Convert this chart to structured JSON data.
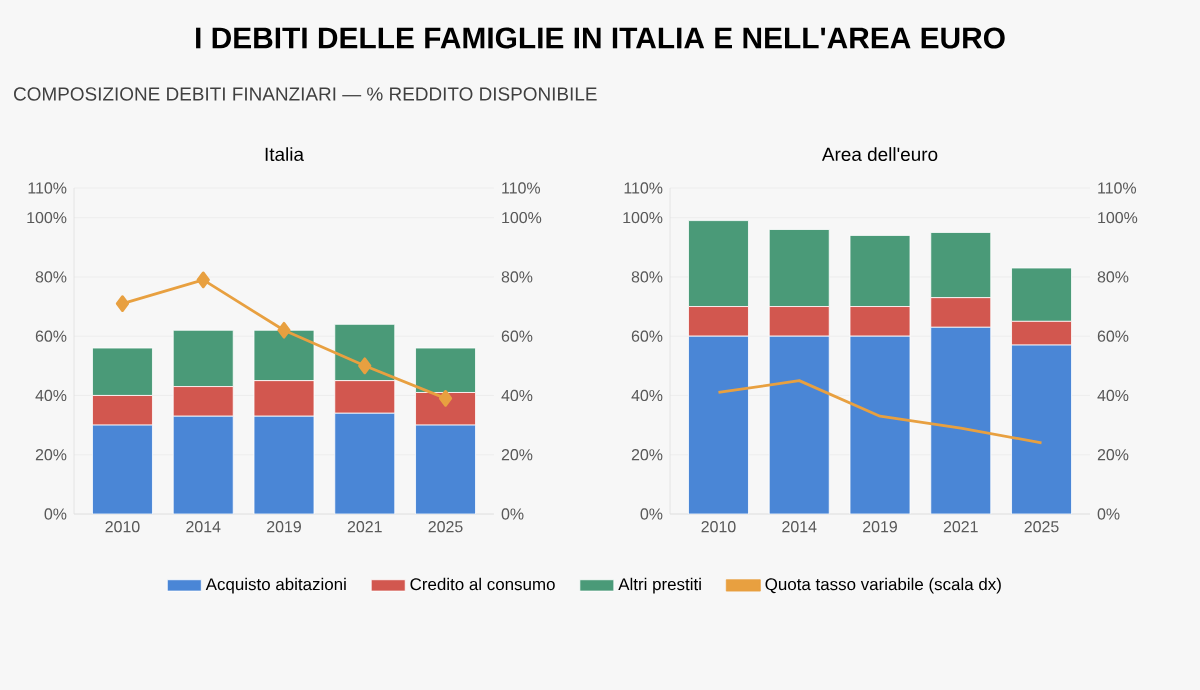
{
  "chart_data": [
    {
      "type": "other",
      "title": "I DEBITI DELLE FAMIGLIE IN ITALIA E NELL'AREA EURO",
      "subtitle": "COMPOSIZIONE DEBITI FINANZIARI — % REDDITO DISPONIBILE"
    },
    {
      "type": "bar",
      "stacked": true,
      "title": "Italia",
      "categories": [
        "2010",
        "2014",
        "2019",
        "2021",
        "2025"
      ],
      "series": [
        {
          "name": "Acquisto abitazioni",
          "color": "#4a86d6",
          "values": [
            30,
            33,
            33,
            34,
            30
          ]
        },
        {
          "name": "Credito al consumo",
          "color": "#d2574f",
          "values": [
            10,
            10,
            12,
            11,
            11
          ]
        },
        {
          "name": "Altri prestiti",
          "color": "#4a9a78",
          "values": [
            16,
            19,
            17,
            19,
            15
          ]
        },
        {
          "name": "Quota tasso variabile (scala dx)",
          "type": "line",
          "axis": "y2",
          "marker": "diamond",
          "color": "#e8a040",
          "values": [
            71,
            79,
            62,
            50,
            39
          ]
        }
      ],
      "ylim": [
        0,
        110
      ],
      "yticks": [
        {
          "value": 0,
          "label": "0%"
        },
        {
          "value": 20,
          "label": "20%"
        },
        {
          "value": 40,
          "label": "40%"
        },
        {
          "value": 60,
          "label": "60%"
        },
        {
          "value": 80,
          "label": "80%"
        },
        {
          "value": 100,
          "label": "100%"
        },
        {
          "value": 110,
          "label": "110%"
        }
      ],
      "y2lim": [
        0,
        110
      ],
      "y2ticks": [
        {
          "value": 0,
          "label": "0%"
        },
        {
          "value": 20,
          "label": "20%"
        },
        {
          "value": 40,
          "label": "40%"
        },
        {
          "value": 60,
          "label": "60%"
        },
        {
          "value": 80,
          "label": "80%"
        },
        {
          "value": 100,
          "label": "100%"
        },
        {
          "value": 110,
          "label": "110%"
        }
      ],
      "grid": "y",
      "legend": "bottom"
    },
    {
      "type": "bar",
      "stacked": true,
      "title": "Area dell'euro",
      "categories": [
        "2010",
        "2014",
        "2019",
        "2021",
        "2025"
      ],
      "series": [
        {
          "color": "#4a86d6",
          "values": [
            60,
            60,
            60,
            63,
            57
          ]
        },
        {
          "color": "#d2574f",
          "values": [
            10,
            10,
            10,
            10,
            8
          ]
        },
        {
          "color": "#4a9a78",
          "values": [
            29,
            26,
            24,
            22,
            18
          ]
        },
        {
          "type": "line",
          "axis": "y2",
          "color": "#e8a040",
          "values": [
            41,
            45,
            33,
            29,
            24
          ]
        }
      ],
      "ylim": [
        0,
        110
      ],
      "yticks": [
        {
          "value": 0,
          "label": "0%"
        },
        {
          "value": 20,
          "label": "20%"
        },
        {
          "value": 40,
          "label": "40%"
        },
        {
          "value": 60,
          "label": "60%"
        },
        {
          "value": 80,
          "label": "80%"
        },
        {
          "value": 100,
          "label": "100%"
        },
        {
          "value": 110,
          "label": "110%"
        }
      ],
      "y2lim": [
        0,
        110
      ],
      "y2ticks": [
        {
          "value": 0,
          "label": "0%"
        },
        {
          "value": 20,
          "label": "20%"
        },
        {
          "value": 40,
          "label": "40%"
        },
        {
          "value": 60,
          "label": "60%"
        },
        {
          "value": 80,
          "label": "80%"
        },
        {
          "value": 100,
          "label": "100%"
        },
        {
          "value": 110,
          "label": "110%"
        }
      ],
      "grid": "y",
      "legend": false
    }
  ]
}
